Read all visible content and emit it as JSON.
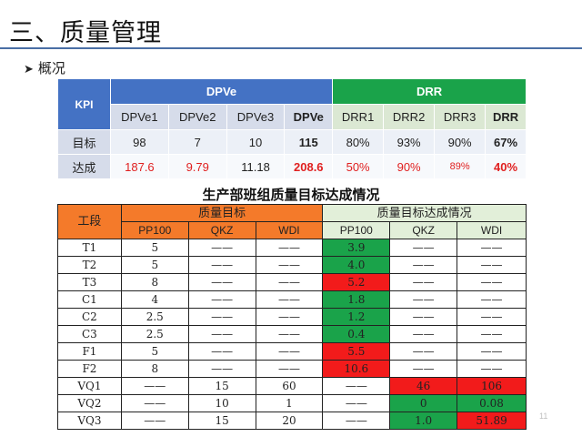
{
  "page": {
    "title": "三、质量管理",
    "bullet_icon": "arrow-right-icon",
    "bullet": "概况",
    "page_number": "11"
  },
  "kpi_table": {
    "kpi_label": "KPI",
    "group_dpve": "DPVe",
    "group_drr": "DRR",
    "columns": [
      "DPVe1",
      "DPVe2",
      "DPVe3",
      "DPVe",
      "DRR1",
      "DRR2",
      "DRR3",
      "DRR"
    ],
    "rows": [
      {
        "label": "目标",
        "values": [
          "98",
          "7",
          "10",
          "115",
          "80%",
          "93%",
          "90%",
          "67%"
        ]
      },
      {
        "label": "达成",
        "values": [
          "187.6",
          "9.79",
          "11.18",
          "208.6",
          "50%",
          "90%",
          "89%",
          "40%"
        ]
      }
    ],
    "colors": {
      "header_blue": "#4472c4",
      "header_green": "#1aa34a",
      "alert_red": "#e02020"
    }
  },
  "production_table": {
    "title": "生产部班组质量目标达成情况",
    "section_label": "工段",
    "group_target": "质量目标",
    "group_actual": "质量目标达成情况",
    "sub_columns": [
      "PP100",
      "QKZ",
      "WDI",
      "PP100",
      "QKZ",
      "WDI"
    ],
    "rows": [
      {
        "section": "T1",
        "t_pp100": "5",
        "t_qkz": "——",
        "t_wdi": "——",
        "a_pp100": "3.9",
        "a_qkz": "——",
        "a_wdi": "——"
      },
      {
        "section": "T2",
        "t_pp100": "5",
        "t_qkz": "——",
        "t_wdi": "——",
        "a_pp100": "4.0",
        "a_qkz": "——",
        "a_wdi": "——"
      },
      {
        "section": "T3",
        "t_pp100": "8",
        "t_qkz": "——",
        "t_wdi": "——",
        "a_pp100": "5.2",
        "a_qkz": "——",
        "a_wdi": "——"
      },
      {
        "section": "C1",
        "t_pp100": "4",
        "t_qkz": "——",
        "t_wdi": "——",
        "a_pp100": "1.8",
        "a_qkz": "——",
        "a_wdi": "——"
      },
      {
        "section": "C2",
        "t_pp100": "2.5",
        "t_qkz": "——",
        "t_wdi": "——",
        "a_pp100": "1.2",
        "a_qkz": "——",
        "a_wdi": "——"
      },
      {
        "section": "C3",
        "t_pp100": "2.5",
        "t_qkz": "——",
        "t_wdi": "——",
        "a_pp100": "0.4",
        "a_qkz": "——",
        "a_wdi": "——"
      },
      {
        "section": "F1",
        "t_pp100": "5",
        "t_qkz": "——",
        "t_wdi": "——",
        "a_pp100": "5.5",
        "a_qkz": "——",
        "a_wdi": "——"
      },
      {
        "section": "F2",
        "t_pp100": "8",
        "t_qkz": "——",
        "t_wdi": "——",
        "a_pp100": "10.6",
        "a_qkz": "——",
        "a_wdi": "——"
      },
      {
        "section": "VQ1",
        "t_pp100": "——",
        "t_qkz": "15",
        "t_wdi": "60",
        "a_pp100": "——",
        "a_qkz": "46",
        "a_wdi": "106"
      },
      {
        "section": "VQ2",
        "t_pp100": "——",
        "t_qkz": "10",
        "t_wdi": "1",
        "a_pp100": "——",
        "a_qkz": "0",
        "a_wdi": "0.08"
      },
      {
        "section": "VQ3",
        "t_pp100": "——",
        "t_qkz": "15",
        "t_wdi": "20",
        "a_pp100": "——",
        "a_qkz": "1.0",
        "a_wdi": "51.89"
      }
    ],
    "colors": {
      "header_orange": "#f47a2a",
      "header_light_green": "#e2efd9",
      "pass_green": "#1aa34a",
      "fail_red": "#f21b1b"
    }
  }
}
